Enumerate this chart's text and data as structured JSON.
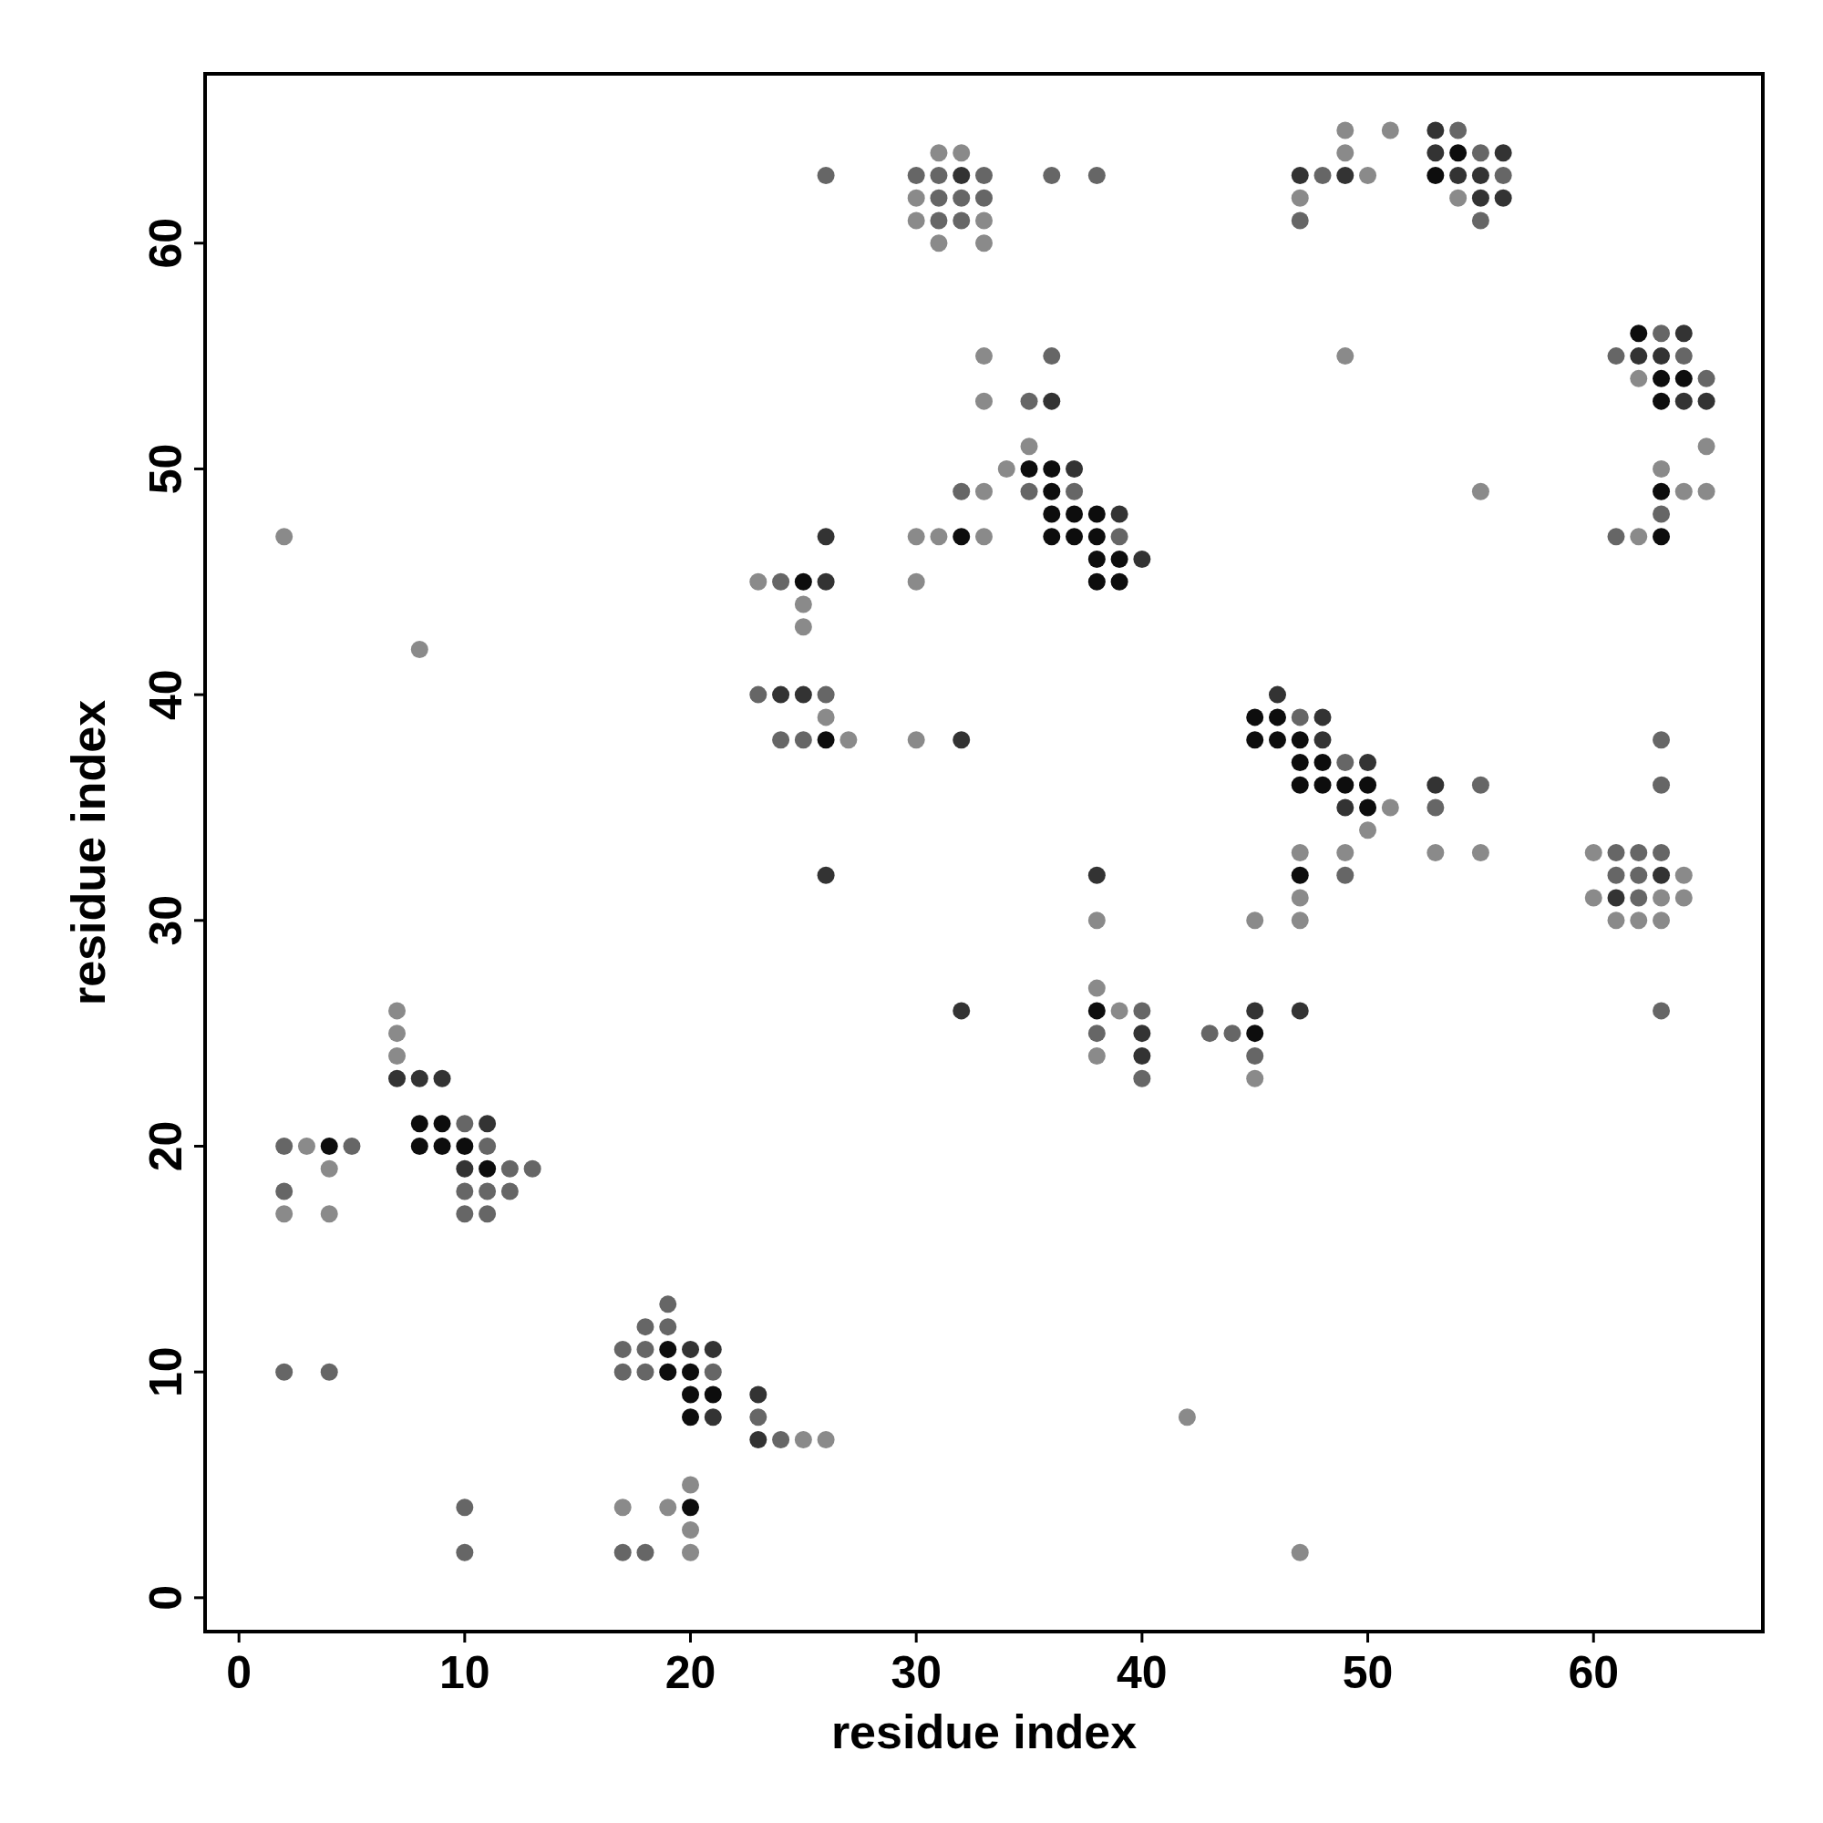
{
  "chart_data": {
    "type": "scatter",
    "xlabel": "residue index",
    "ylabel": "residue index",
    "xlim": [
      -1.5,
      67.5
    ],
    "ylim": [
      -1.5,
      67.5
    ],
    "xticks": [
      0,
      10,
      20,
      30,
      40,
      50,
      60
    ],
    "yticks": [
      0,
      10,
      20,
      30,
      40,
      50,
      60
    ],
    "grid": false,
    "marker": "circle",
    "series": [
      {
        "color": "#8a8a8a",
        "x": [
          49,
          51,
          31,
          32,
          49,
          50,
          30,
          47,
          54,
          30,
          33,
          31,
          33,
          33,
          49,
          62,
          33,
          35,
          65,
          34,
          63,
          33,
          55,
          64,
          65,
          2,
          30,
          31,
          33,
          62,
          23,
          30,
          25,
          25,
          8,
          26,
          27,
          30,
          51,
          50,
          47,
          49,
          53,
          55,
          60,
          64,
          47,
          60,
          63,
          64,
          38,
          45,
          47,
          61,
          62,
          63,
          38,
          7,
          39,
          7,
          7,
          38,
          45,
          3,
          4,
          2,
          4,
          42,
          25,
          26,
          20,
          17,
          19,
          20,
          20,
          47
        ],
        "values": [
          65,
          65,
          64,
          64,
          64,
          63,
          62,
          62,
          62,
          61,
          61,
          60,
          60,
          55,
          55,
          54,
          53,
          51,
          51,
          50,
          50,
          49,
          49,
          49,
          49,
          47,
          47,
          47,
          47,
          47,
          45,
          45,
          44,
          43,
          42,
          39,
          38,
          38,
          35,
          34,
          33,
          33,
          33,
          33,
          33,
          32,
          31,
          31,
          31,
          31,
          30,
          30,
          30,
          30,
          30,
          30,
          27,
          26,
          26,
          25,
          24,
          24,
          23,
          20,
          19,
          17,
          17,
          8,
          7,
          7,
          5,
          4,
          4,
          3,
          2,
          2
        ]
      },
      {
        "color": "#666666",
        "x": [
          54,
          55,
          56,
          26
        ],
        "values": [
          65,
          64,
          63,
          63
        ]
      },
      {
        "color": "#666666",
        "x": [
          30,
          31,
          33,
          36,
          38,
          48,
          31,
          32,
          33,
          31,
          32,
          47,
          55,
          63,
          36,
          61,
          64,
          65,
          35,
          32,
          35,
          37,
          63,
          39,
          61,
          24,
          23,
          26,
          47,
          24,
          25,
          63,
          49,
          55,
          63,
          53,
          61,
          62,
          63,
          49,
          61,
          62,
          62,
          40,
          63,
          38,
          43,
          44,
          45,
          40,
          10,
          2,
          5,
          11,
          12,
          13,
          2,
          10,
          11,
          12,
          10,
          11,
          19,
          18,
          19,
          17,
          18,
          2,
          4,
          17,
          18,
          21,
          23,
          24,
          10,
          10,
          17,
          18
        ],
        "values": [
          63,
          63,
          63,
          63,
          63,
          63,
          62,
          62,
          62,
          61,
          61,
          61,
          61,
          56,
          55,
          55,
          55,
          54,
          53,
          49,
          49,
          49,
          48,
          47,
          47,
          45,
          40,
          40,
          39,
          38,
          38,
          38,
          37,
          36,
          36,
          35,
          33,
          33,
          33,
          32,
          32,
          32,
          31,
          26,
          26,
          25,
          25,
          25,
          24,
          23,
          21,
          20,
          20,
          20,
          19,
          19,
          18,
          18,
          18,
          18,
          17,
          17,
          13,
          12,
          12,
          11,
          11,
          10,
          10,
          10,
          10,
          10,
          8,
          7,
          4,
          2,
          2,
          2
        ]
      },
      {
        "color": "#333333",
        "x": [
          53,
          53,
          56,
          32,
          47,
          49,
          54,
          55,
          55,
          56,
          64,
          62,
          63,
          36,
          64,
          65,
          37,
          39,
          26,
          40,
          26,
          24,
          25,
          46,
          48,
          32,
          48,
          50,
          53,
          49,
          26,
          38,
          63,
          61,
          32,
          45,
          47,
          40,
          40,
          7,
          8,
          9,
          11,
          10,
          20,
          21,
          23,
          21,
          23
        ],
        "values": [
          65,
          64,
          64,
          63,
          63,
          63,
          63,
          63,
          62,
          62,
          56,
          55,
          55,
          53,
          53,
          53,
          50,
          48,
          47,
          46,
          45,
          40,
          40,
          40,
          39,
          38,
          38,
          37,
          36,
          35,
          32,
          32,
          32,
          31,
          26,
          26,
          26,
          25,
          24,
          23,
          23,
          23,
          21,
          19,
          11,
          11,
          9,
          8,
          7
        ]
      },
      {
        "color": "#0d0d0d",
        "x": [
          54,
          53,
          62,
          63,
          64,
          63,
          35,
          36,
          36,
          63,
          36,
          37,
          38,
          32,
          36,
          37,
          38,
          63,
          38,
          39,
          25,
          38,
          39,
          45,
          46,
          26,
          45,
          46,
          47,
          47,
          48,
          47,
          48,
          49,
          50,
          50,
          47,
          38,
          45,
          8,
          9,
          4,
          8,
          9,
          10,
          11,
          19,
          19,
          20,
          20,
          21,
          20,
          20
        ],
        "values": [
          64,
          63,
          56,
          54,
          54,
          53,
          50,
          50,
          49,
          49,
          48,
          48,
          48,
          47,
          47,
          47,
          47,
          47,
          46,
          46,
          45,
          45,
          45,
          39,
          39,
          38,
          38,
          38,
          38,
          37,
          37,
          36,
          36,
          36,
          36,
          35,
          32,
          26,
          25,
          21,
          21,
          20,
          20,
          20,
          20,
          19,
          11,
          10,
          10,
          9,
          9,
          8,
          4
        ]
      }
    ]
  }
}
